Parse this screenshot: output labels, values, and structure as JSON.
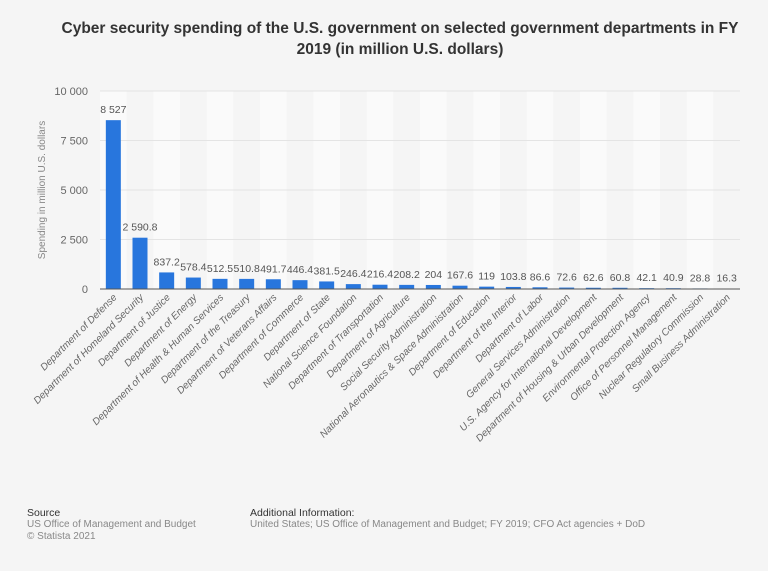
{
  "chart_data": {
    "type": "bar",
    "title": "Cyber security spending of the U.S. government on selected government departments in FY 2019 (in million U.S. dollars)",
    "xlabel": "",
    "ylabel": "Spending in million U.S. dollars",
    "ylim": [
      0,
      10000
    ],
    "yticks": [
      0,
      2500,
      5000,
      7500,
      10000
    ],
    "ytick_labels": [
      "0",
      "2 500",
      "5 000",
      "7 500",
      "10 000"
    ],
    "grid": true,
    "bar_color": "#2876dd",
    "categories": [
      "Department of Defense",
      "Department of Homeland Security",
      "Department of Justice",
      "Department of Energy",
      "Department of Health & Human Services",
      "Department of the Treasury",
      "Department of Veterans Affairs",
      "Department of Commerce",
      "Department of State",
      "National Science Foundation",
      "Department of Transportation",
      "Department of Agriculture",
      "Social Security Administration",
      "National Aeronautics & Space Administration",
      "Department of Education",
      "Department of the Interior",
      "Department of Labor",
      "General Services Administration",
      "U.S. Agency for International Development",
      "Department of Housing & Urban Development",
      "Environmental Protection Agency",
      "Office of Personnel Management",
      "Nuclear Regulatory Commission",
      "Small Business Administration"
    ],
    "values": [
      8527,
      2590.8,
      837.2,
      578.4,
      512.5,
      510.8,
      491.7,
      446.4,
      381.5,
      246.4,
      216.4,
      208.2,
      204,
      167.6,
      119,
      103.8,
      86.6,
      72.6,
      62.6,
      60.8,
      42.1,
      40.9,
      28.8,
      16.3
    ],
    "value_labels": [
      "8 527",
      "2 590.8",
      "837.2",
      "578.4",
      "512.5",
      "510.8",
      "491.7",
      "446.4",
      "381.5",
      "246.4",
      "216.4",
      "208.2",
      "204",
      "167.6",
      "119",
      "103.8",
      "86.6",
      "72.6",
      "62.6",
      "60.8",
      "42.1",
      "40.9",
      "28.8",
      "16.3"
    ]
  },
  "footer": {
    "source_heading": "Source",
    "source_text": "US Office of Management and Budget",
    "copyright": "© Statista 2021",
    "info_heading": "Additional Information:",
    "info_text": "United States; US Office of Management and Budget; FY 2019; CFO Act agencies + DoD"
  }
}
